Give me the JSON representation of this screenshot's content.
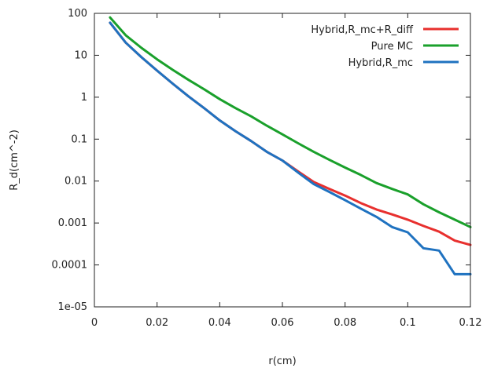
{
  "chart_data": {
    "type": "line",
    "xlabel": "r(cm)",
    "ylabel": "R_d(cm^-2)",
    "xlim": [
      0,
      0.12
    ],
    "ylim": [
      1e-05,
      100
    ],
    "yscale": "log",
    "grid": false,
    "legend_position": "top-right",
    "x_ticks": [
      {
        "value": 0,
        "label": "0"
      },
      {
        "value": 0.02,
        "label": "0.02"
      },
      {
        "value": 0.04,
        "label": "0.04"
      },
      {
        "value": 0.06,
        "label": "0.06"
      },
      {
        "value": 0.08,
        "label": "0.08"
      },
      {
        "value": 0.1,
        "label": "0.1"
      },
      {
        "value": 0.12,
        "label": "0.12"
      }
    ],
    "y_ticks": [
      {
        "value": 100,
        "label": "100"
      },
      {
        "value": 10,
        "label": "10"
      },
      {
        "value": 1,
        "label": "1"
      },
      {
        "value": 0.1,
        "label": "0.1"
      },
      {
        "value": 0.01,
        "label": "0.01"
      },
      {
        "value": 0.001,
        "label": "0.001"
      },
      {
        "value": 0.0001,
        "label": "0.0001"
      },
      {
        "value": 1e-05,
        "label": "1e-05"
      }
    ],
    "series": [
      {
        "name": "Hybrid,R_mc+R_diff",
        "color": "#e8302e",
        "x": [
          0.005,
          0.01,
          0.015,
          0.02,
          0.025,
          0.03,
          0.035,
          0.04,
          0.045,
          0.05,
          0.055,
          0.06,
          0.065,
          0.07,
          0.075,
          0.08,
          0.085,
          0.09,
          0.095,
          0.1,
          0.105,
          0.11,
          0.115,
          0.12
        ],
        "y": [
          60,
          20,
          9,
          4.3,
          2.1,
          1.05,
          0.55,
          0.28,
          0.155,
          0.09,
          0.05,
          0.031,
          0.017,
          0.0095,
          0.0065,
          0.0045,
          0.003,
          0.0021,
          0.0016,
          0.0012,
          0.00085,
          0.00062,
          0.00038,
          0.0003
        ]
      },
      {
        "name": "Pure MC",
        "color": "#1aa02b",
        "x": [
          0.005,
          0.01,
          0.015,
          0.02,
          0.025,
          0.03,
          0.035,
          0.04,
          0.045,
          0.05,
          0.055,
          0.06,
          0.065,
          0.07,
          0.075,
          0.08,
          0.085,
          0.09,
          0.095,
          0.1,
          0.105,
          0.11,
          0.115,
          0.12
        ],
        "y": [
          80,
          30,
          15,
          8,
          4.5,
          2.6,
          1.55,
          0.9,
          0.55,
          0.35,
          0.21,
          0.13,
          0.08,
          0.05,
          0.032,
          0.021,
          0.014,
          0.009,
          0.0065,
          0.0048,
          0.0028,
          0.0018,
          0.0012,
          0.0008
        ]
      },
      {
        "name": "Hybrid,R_mc",
        "color": "#1f72c0",
        "x": [
          0.005,
          0.01,
          0.015,
          0.02,
          0.025,
          0.03,
          0.035,
          0.04,
          0.045,
          0.05,
          0.055,
          0.06,
          0.065,
          0.07,
          0.075,
          0.08,
          0.085,
          0.09,
          0.095,
          0.1,
          0.105,
          0.11,
          0.115,
          0.12
        ],
        "y": [
          60,
          20,
          9,
          4.3,
          2.1,
          1.05,
          0.55,
          0.28,
          0.155,
          0.09,
          0.05,
          0.031,
          0.016,
          0.0085,
          0.0055,
          0.0035,
          0.0022,
          0.0014,
          0.0008,
          0.0006,
          0.00025,
          0.00022,
          6e-05,
          6e-05
        ]
      }
    ]
  }
}
